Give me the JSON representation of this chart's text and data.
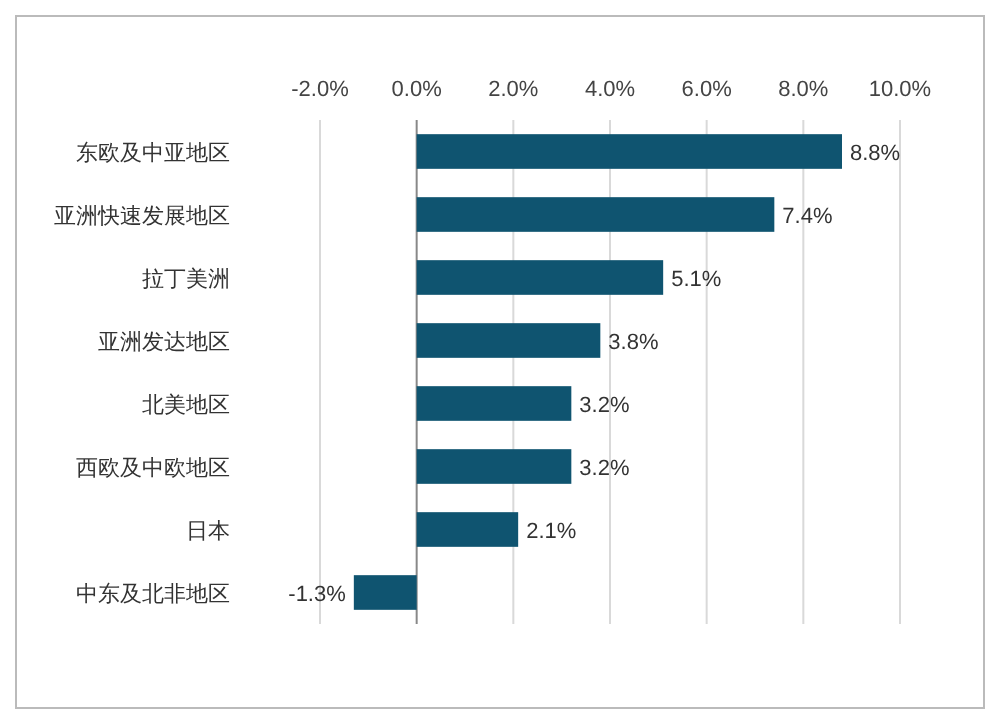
{
  "chart_data": {
    "type": "bar",
    "orientation": "horizontal",
    "categories": [
      "东欧及中亚地区",
      "亚洲快速发展地区",
      "拉丁美洲",
      "亚洲发达地区",
      "北美地区",
      "西欧及中欧地区",
      "日本",
      "中东及北非地区"
    ],
    "values": [
      8.8,
      7.4,
      5.1,
      3.8,
      3.2,
      3.2,
      2.1,
      -1.3
    ],
    "value_labels": [
      "8.8%",
      "7.4%",
      "5.1%",
      "3.8%",
      "3.2%",
      "3.2%",
      "2.1%",
      "-1.3%"
    ],
    "color": "#0f5470",
    "xlim": [
      -2,
      10
    ],
    "xticks": [
      {
        "value": -2,
        "label": "-2.0%"
      },
      {
        "value": 0,
        "label": "0.0%"
      },
      {
        "value": 2,
        "label": "2.0%"
      },
      {
        "value": 4,
        "label": "4.0%"
      },
      {
        "value": 6,
        "label": "6.0%"
      },
      {
        "value": 8,
        "label": "8.0%"
      },
      {
        "value": 10,
        "label": "10.0%"
      }
    ],
    "grid": "x"
  }
}
